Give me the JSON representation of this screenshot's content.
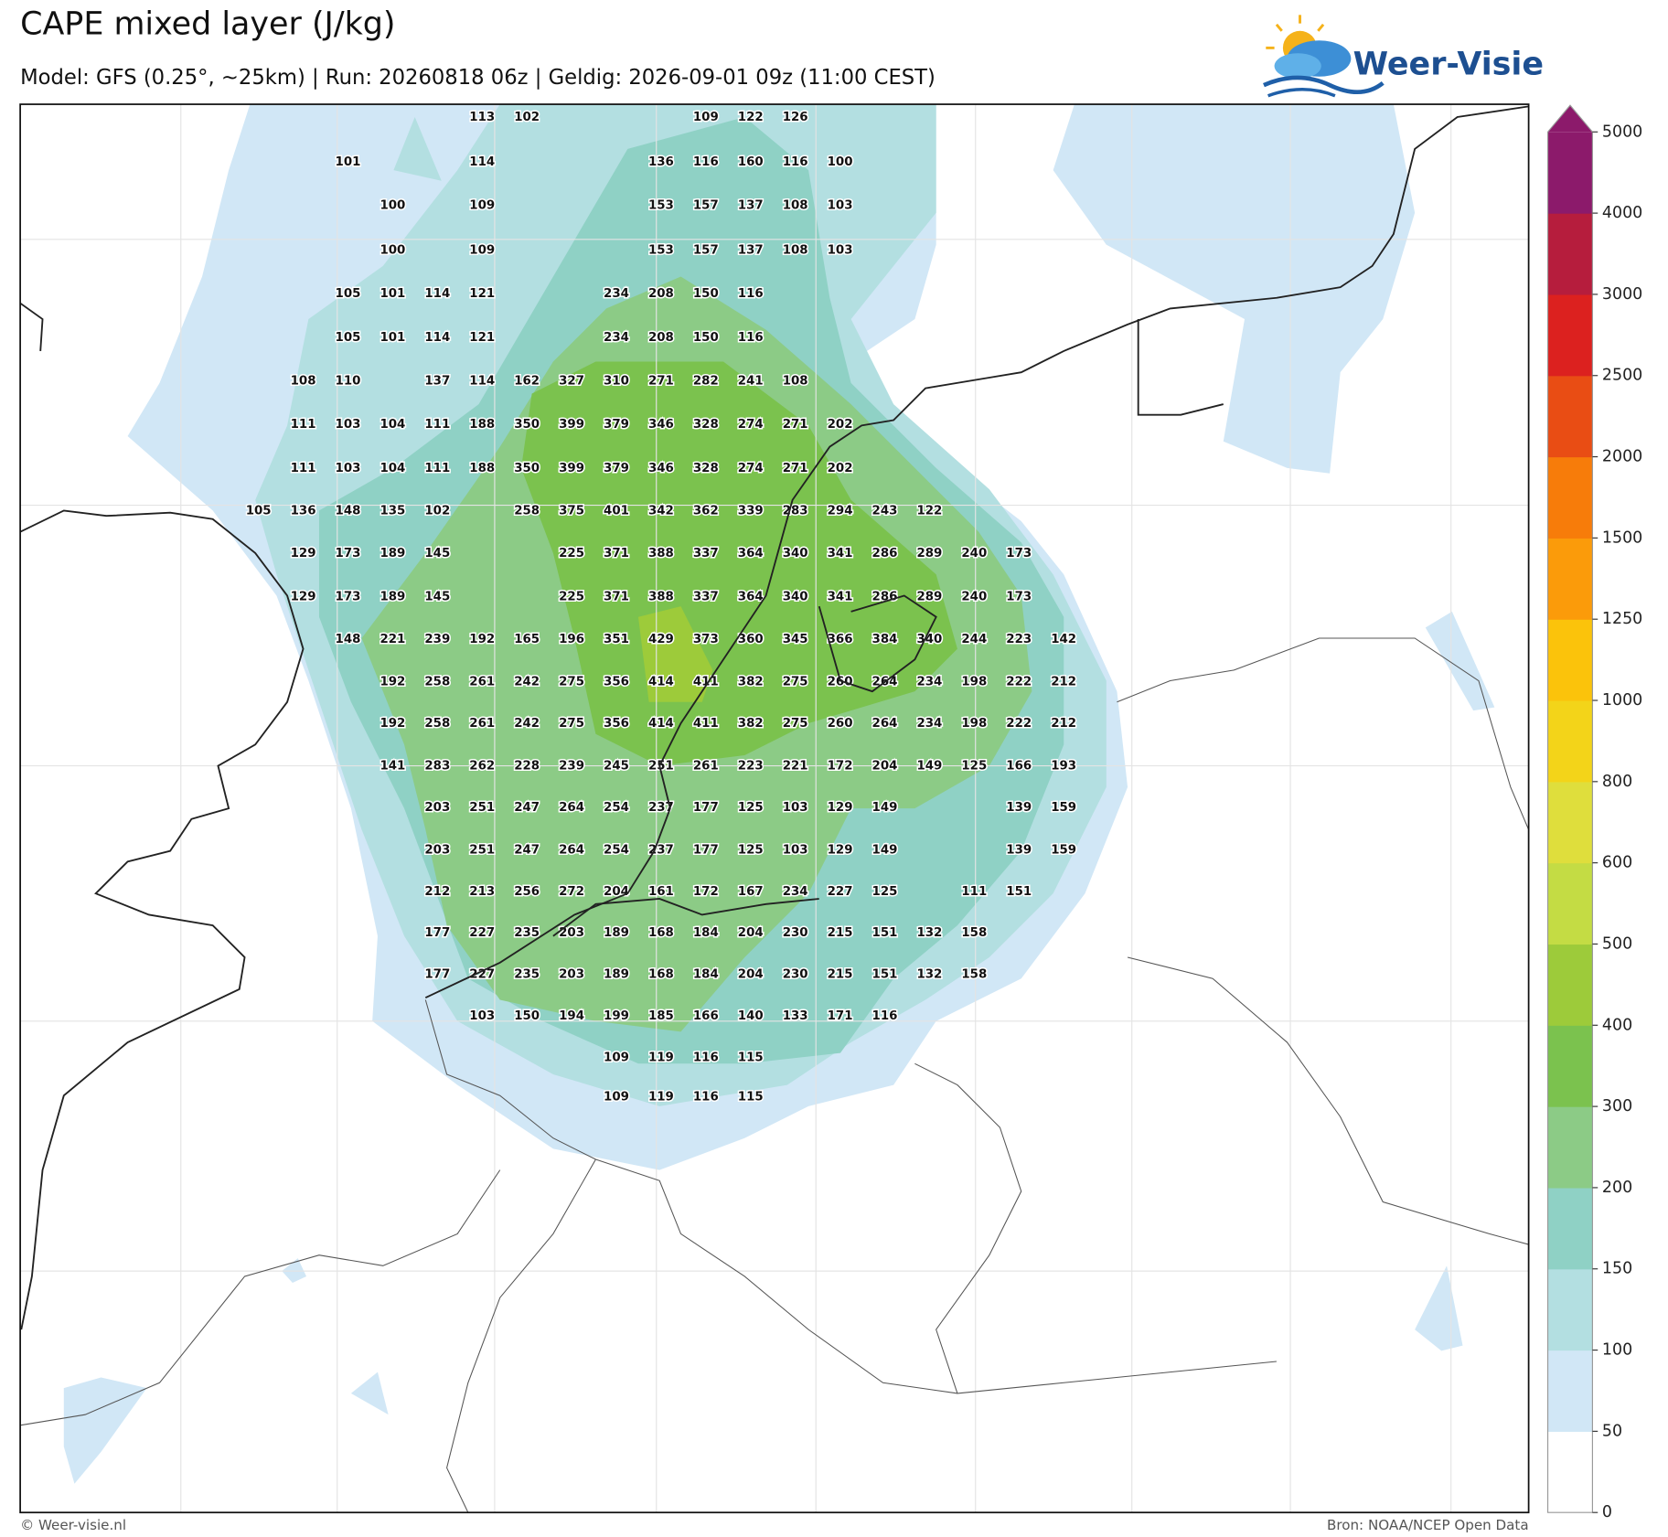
{
  "header": {
    "title": "CAPE mixed layer (J/kg)",
    "subtitle": "Model: GFS (0.25°, ~25km)  |  Run: 20260818 06z  |  Geldig: 2026-09-01 09z (11:00 CEST)",
    "logo": "Weer-Visie"
  },
  "map": {
    "type": "contour-map",
    "value_labels": [
      [
        null,
        null,
        null,
        null,
        null,
        113,
        102,
        null,
        null,
        null,
        109,
        122,
        126,
        null,
        null,
        null,
        null,
        null,
        null
      ],
      [
        null,
        null,
        101,
        null,
        null,
        114,
        null,
        null,
        null,
        136,
        116,
        160,
        116,
        100,
        null,
        null,
        null,
        null,
        null
      ],
      [
        null,
        null,
        null,
        100,
        null,
        109,
        null,
        null,
        null,
        153,
        157,
        137,
        108,
        103,
        null,
        null,
        null,
        null,
        null
      ],
      [
        null,
        null,
        null,
        100,
        null,
        109,
        null,
        null,
        null,
        153,
        157,
        137,
        108,
        103,
        null,
        null,
        null,
        null,
        null
      ],
      [
        null,
        null,
        105,
        101,
        114,
        121,
        null,
        null,
        234,
        208,
        150,
        116,
        null,
        null,
        null,
        null,
        null,
        null,
        null
      ],
      [
        null,
        null,
        105,
        101,
        114,
        121,
        null,
        null,
        234,
        208,
        150,
        116,
        null,
        null,
        null,
        null,
        null,
        null,
        null
      ],
      [
        null,
        108,
        110,
        null,
        137,
        114,
        162,
        327,
        310,
        271,
        282,
        241,
        108,
        null,
        null,
        null,
        null,
        null,
        null
      ],
      [
        null,
        111,
        103,
        104,
        111,
        188,
        350,
        399,
        379,
        346,
        328,
        274,
        271,
        202,
        null,
        null,
        null,
        null,
        null
      ],
      [
        null,
        111,
        103,
        104,
        111,
        188,
        350,
        399,
        379,
        346,
        328,
        274,
        271,
        202,
        null,
        null,
        null,
        null,
        null
      ],
      [
        105,
        136,
        148,
        135,
        102,
        null,
        258,
        375,
        401,
        342,
        362,
        339,
        283,
        294,
        243,
        122,
        null,
        null,
        null
      ],
      [
        null,
        129,
        173,
        189,
        145,
        null,
        null,
        225,
        371,
        388,
        337,
        364,
        340,
        341,
        286,
        289,
        240,
        173,
        null
      ],
      [
        null,
        129,
        173,
        189,
        145,
        null,
        null,
        225,
        371,
        388,
        337,
        364,
        340,
        341,
        286,
        289,
        240,
        173,
        null
      ],
      [
        null,
        null,
        148,
        221,
        239,
        192,
        165,
        196,
        351,
        429,
        373,
        360,
        345,
        366,
        384,
        340,
        244,
        223,
        142
      ],
      [
        null,
        null,
        null,
        192,
        258,
        261,
        242,
        275,
        356,
        414,
        411,
        382,
        275,
        260,
        264,
        234,
        198,
        222,
        212
      ],
      [
        null,
        null,
        null,
        192,
        258,
        261,
        242,
        275,
        356,
        414,
        411,
        382,
        275,
        260,
        264,
        234,
        198,
        222,
        212
      ],
      [
        null,
        null,
        null,
        141,
        283,
        262,
        228,
        239,
        245,
        251,
        261,
        223,
        221,
        172,
        204,
        149,
        125,
        166,
        193
      ],
      [
        null,
        null,
        null,
        null,
        203,
        251,
        247,
        264,
        254,
        237,
        177,
        125,
        103,
        129,
        149,
        null,
        null,
        139,
        159
      ],
      [
        null,
        null,
        null,
        null,
        203,
        251,
        247,
        264,
        254,
        237,
        177,
        125,
        103,
        129,
        149,
        null,
        null,
        139,
        159
      ],
      [
        null,
        null,
        null,
        null,
        212,
        213,
        256,
        272,
        204,
        161,
        172,
        167,
        234,
        227,
        125,
        null,
        111,
        151,
        null
      ],
      [
        null,
        null,
        null,
        null,
        177,
        227,
        235,
        203,
        189,
        168,
        184,
        204,
        230,
        215,
        151,
        132,
        158,
        null,
        null
      ],
      [
        null,
        null,
        null,
        null,
        177,
        227,
        235,
        203,
        189,
        168,
        184,
        204,
        230,
        215,
        151,
        132,
        158,
        null,
        null
      ],
      [
        null,
        null,
        null,
        null,
        null,
        103,
        150,
        194,
        199,
        185,
        166,
        140,
        133,
        171,
        116,
        null,
        null,
        null,
        null
      ],
      [
        null,
        null,
        null,
        null,
        null,
        null,
        null,
        null,
        109,
        119,
        116,
        115,
        null,
        null,
        null,
        null,
        null,
        null,
        null
      ],
      [
        null,
        null,
        null,
        null,
        null,
        null,
        null,
        null,
        109,
        119,
        116,
        115,
        null,
        null,
        null,
        null,
        null,
        null,
        null
      ]
    ]
  },
  "colorbar": {
    "ticks": [
      0,
      50,
      100,
      150,
      200,
      300,
      400,
      500,
      600,
      800,
      1000,
      1250,
      1500,
      2000,
      2500,
      3000,
      4000,
      5000
    ],
    "colors": [
      "#ffffff",
      "#d1e7f6",
      "#b3dfe1",
      "#8fd1c5",
      "#8ccb86",
      "#7bc24e",
      "#9dcb3a",
      "#c4dc44",
      "#dfde3c",
      "#f3d419",
      "#fbc30b",
      "#fb9b0a",
      "#f77c0a",
      "#e94d14",
      "#dc211f",
      "#b61d3d",
      "#8c1a6b"
    ]
  },
  "footer": {
    "left": "© Weer-visie.nl",
    "right": "Bron: NOAA/NCEP Open Data"
  }
}
